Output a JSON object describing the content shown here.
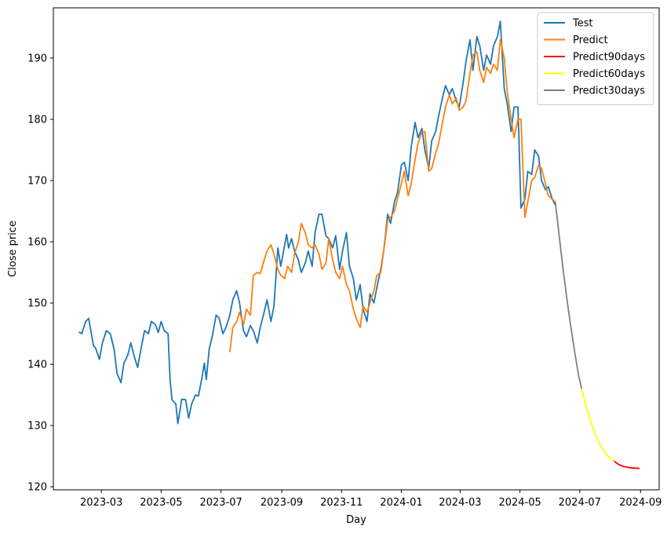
{
  "chart_data": {
    "type": "line",
    "title": "",
    "xlabel": "Day",
    "ylabel": "Close price",
    "ylim": [
      119.5,
      198.2
    ],
    "xlim": [
      "2023-01-11",
      "2024-09-20"
    ],
    "grid": false,
    "legend_position": "top-right",
    "x_ticks": [
      "2023-03",
      "2023-05",
      "2023-07",
      "2023-09",
      "2023-11",
      "2024-01",
      "2024-03",
      "2024-05",
      "2024-07",
      "2024-09"
    ],
    "y_ticks": [
      120,
      130,
      140,
      150,
      160,
      170,
      180,
      190
    ],
    "series": [
      {
        "name": "Test",
        "color": "#1f77b4",
        "points": [
          [
            "2023-02-06",
            145.3
          ],
          [
            "2023-02-09",
            145.0
          ],
          [
            "2023-02-13",
            147.0
          ],
          [
            "2023-02-16",
            147.5
          ],
          [
            "2023-02-21",
            143.0
          ],
          [
            "2023-02-23",
            142.7
          ],
          [
            "2023-02-27",
            140.8
          ],
          [
            "2023-03-02",
            143.5
          ],
          [
            "2023-03-06",
            145.5
          ],
          [
            "2023-03-10",
            145.0
          ],
          [
            "2023-03-14",
            142.5
          ],
          [
            "2023-03-17",
            138.5
          ],
          [
            "2023-03-21",
            137.0
          ],
          [
            "2023-03-24",
            140.2
          ],
          [
            "2023-03-28",
            141.5
          ],
          [
            "2023-03-31",
            143.5
          ],
          [
            "2023-04-04",
            141.0
          ],
          [
            "2023-04-07",
            139.5
          ],
          [
            "2023-04-11",
            143.0
          ],
          [
            "2023-04-14",
            145.5
          ],
          [
            "2023-04-18",
            145.0
          ],
          [
            "2023-04-21",
            147.0
          ],
          [
            "2023-04-25",
            146.5
          ],
          [
            "2023-04-28",
            145.2
          ],
          [
            "2023-05-01",
            147.0
          ],
          [
            "2023-05-04",
            145.5
          ],
          [
            "2023-05-08",
            145.0
          ],
          [
            "2023-05-10",
            137.5
          ],
          [
            "2023-05-12",
            134.2
          ],
          [
            "2023-05-16",
            133.5
          ],
          [
            "2023-05-18",
            130.3
          ],
          [
            "2023-05-22",
            134.3
          ],
          [
            "2023-05-26",
            134.2
          ],
          [
            "2023-05-29",
            131.2
          ],
          [
            "2023-06-01",
            133.5
          ],
          [
            "2023-06-05",
            135.0
          ],
          [
            "2023-06-08",
            134.8
          ],
          [
            "2023-06-12",
            138.2
          ],
          [
            "2023-06-14",
            140.2
          ],
          [
            "2023-06-16",
            137.5
          ],
          [
            "2023-06-19",
            142.5
          ],
          [
            "2023-06-22",
            144.5
          ],
          [
            "2023-06-26",
            148.0
          ],
          [
            "2023-06-29",
            147.6
          ],
          [
            "2023-07-03",
            145.0
          ],
          [
            "2023-07-06",
            146.0
          ],
          [
            "2023-07-10",
            148.0
          ],
          [
            "2023-07-13",
            150.5
          ],
          [
            "2023-07-17",
            152.0
          ],
          [
            "2023-07-20",
            150.0
          ],
          [
            "2023-07-24",
            145.5
          ],
          [
            "2023-07-27",
            144.5
          ],
          [
            "2023-07-31",
            146.3
          ],
          [
            "2023-08-03",
            145.5
          ],
          [
            "2023-08-07",
            143.5
          ],
          [
            "2023-08-10",
            146.0
          ],
          [
            "2023-08-14",
            148.5
          ],
          [
            "2023-08-17",
            150.5
          ],
          [
            "2023-08-21",
            147.0
          ],
          [
            "2023-08-24",
            149.5
          ],
          [
            "2023-08-28",
            159.0
          ],
          [
            "2023-08-31",
            156.0
          ],
          [
            "2023-09-04",
            159.5
          ],
          [
            "2023-09-06",
            161.2
          ],
          [
            "2023-09-08",
            159.0
          ],
          [
            "2023-09-11",
            160.5
          ],
          [
            "2023-09-14",
            158.5
          ],
          [
            "2023-09-18",
            157.0
          ],
          [
            "2023-09-21",
            155.0
          ],
          [
            "2023-09-25",
            156.5
          ],
          [
            "2023-09-28",
            158.5
          ],
          [
            "2023-10-02",
            156.0
          ],
          [
            "2023-10-05",
            161.5
          ],
          [
            "2023-10-09",
            164.5
          ],
          [
            "2023-10-12",
            164.5
          ],
          [
            "2023-10-16",
            161.0
          ],
          [
            "2023-10-19",
            160.5
          ],
          [
            "2023-10-23",
            159.0
          ],
          [
            "2023-10-26",
            161.0
          ],
          [
            "2023-10-30",
            155.5
          ],
          [
            "2023-11-02",
            158.5
          ],
          [
            "2023-11-06",
            161.5
          ],
          [
            "2023-11-09",
            156.0
          ],
          [
            "2023-11-13",
            154.0
          ],
          [
            "2023-11-16",
            150.5
          ],
          [
            "2023-11-20",
            153.0
          ],
          [
            "2023-11-23",
            149.0
          ],
          [
            "2023-11-27",
            147.0
          ],
          [
            "2023-11-30",
            151.5
          ],
          [
            "2023-12-04",
            150.0
          ],
          [
            "2023-12-07",
            152.5
          ],
          [
            "2023-12-11",
            155.5
          ],
          [
            "2023-12-14",
            158.5
          ],
          [
            "2023-12-18",
            164.5
          ],
          [
            "2023-12-21",
            163.0
          ],
          [
            "2023-12-25",
            166.5
          ],
          [
            "2023-12-28",
            168.0
          ],
          [
            "2024-01-01",
            172.5
          ],
          [
            "2024-01-04",
            173.0
          ],
          [
            "2024-01-08",
            170.0
          ],
          [
            "2024-01-11",
            175.5
          ],
          [
            "2024-01-15",
            179.5
          ],
          [
            "2024-01-18",
            177.0
          ],
          [
            "2024-01-22",
            178.5
          ],
          [
            "2024-01-25",
            175.0
          ],
          [
            "2024-01-29",
            172.0
          ],
          [
            "2024-02-01",
            176.5
          ],
          [
            "2024-02-05",
            178.0
          ],
          [
            "2024-02-08",
            180.5
          ],
          [
            "2024-02-12",
            183.5
          ],
          [
            "2024-02-15",
            185.5
          ],
          [
            "2024-02-19",
            184.0
          ],
          [
            "2024-02-22",
            185.0
          ],
          [
            "2024-02-26",
            183.0
          ],
          [
            "2024-02-29",
            182.0
          ],
          [
            "2024-03-04",
            186.0
          ],
          [
            "2024-03-07",
            189.5
          ],
          [
            "2024-03-11",
            193.0
          ],
          [
            "2024-03-14",
            188.0
          ],
          [
            "2024-03-18",
            193.5
          ],
          [
            "2024-03-21",
            192.0
          ],
          [
            "2024-03-25",
            188.0
          ],
          [
            "2024-03-28",
            190.5
          ],
          [
            "2024-04-01",
            189.0
          ],
          [
            "2024-04-04",
            192.0
          ],
          [
            "2024-04-08",
            193.5
          ],
          [
            "2024-04-11",
            196.0
          ],
          [
            "2024-04-15",
            185.0
          ],
          [
            "2024-04-18",
            182.5
          ],
          [
            "2024-04-22",
            178.0
          ],
          [
            "2024-04-25",
            182.0
          ],
          [
            "2024-04-29",
            182.0
          ],
          [
            "2024-05-02",
            165.5
          ],
          [
            "2024-05-06",
            167.0
          ],
          [
            "2024-05-09",
            171.5
          ],
          [
            "2024-05-13",
            171.0
          ],
          [
            "2024-05-16",
            175.0
          ],
          [
            "2024-05-20",
            174.0
          ],
          [
            "2024-05-23",
            170.0
          ],
          [
            "2024-05-27",
            168.5
          ],
          [
            "2024-05-30",
            169.0
          ],
          [
            "2024-06-03",
            167.0
          ],
          [
            "2024-06-06",
            166.0
          ]
        ]
      },
      {
        "name": "Predict",
        "color": "#ff7f0e",
        "points": [
          [
            "2023-07-10",
            142.0
          ],
          [
            "2023-07-13",
            146.0
          ],
          [
            "2023-07-17",
            147.0
          ],
          [
            "2023-07-20",
            148.5
          ],
          [
            "2023-07-24",
            146.5
          ],
          [
            "2023-07-27",
            149.0
          ],
          [
            "2023-07-31",
            148.0
          ],
          [
            "2023-08-03",
            154.5
          ],
          [
            "2023-08-07",
            155.0
          ],
          [
            "2023-08-10",
            154.8
          ],
          [
            "2023-08-14",
            157.0
          ],
          [
            "2023-08-17",
            158.5
          ],
          [
            "2023-08-21",
            159.5
          ],
          [
            "2023-08-24",
            158.0
          ],
          [
            "2023-08-28",
            155.5
          ],
          [
            "2023-08-31",
            154.5
          ],
          [
            "2023-09-04",
            154.0
          ],
          [
            "2023-09-07",
            156.0
          ],
          [
            "2023-09-11",
            155.0
          ],
          [
            "2023-09-14",
            158.0
          ],
          [
            "2023-09-18",
            160.0
          ],
          [
            "2023-09-21",
            163.0
          ],
          [
            "2023-09-25",
            161.5
          ],
          [
            "2023-09-28",
            159.5
          ],
          [
            "2023-10-02",
            159.0
          ],
          [
            "2023-10-05",
            159.5
          ],
          [
            "2023-10-09",
            158.0
          ],
          [
            "2023-10-12",
            155.5
          ],
          [
            "2023-10-16",
            156.5
          ],
          [
            "2023-10-19",
            160.5
          ],
          [
            "2023-10-23",
            157.0
          ],
          [
            "2023-10-26",
            155.0
          ],
          [
            "2023-10-30",
            154.0
          ],
          [
            "2023-11-02",
            156.0
          ],
          [
            "2023-11-06",
            153.0
          ],
          [
            "2023-11-09",
            152.0
          ],
          [
            "2023-11-13",
            149.0
          ],
          [
            "2023-11-16",
            147.5
          ],
          [
            "2023-11-20",
            146.0
          ],
          [
            "2023-11-23",
            149.5
          ],
          [
            "2023-11-27",
            148.5
          ],
          [
            "2023-11-30",
            150.0
          ],
          [
            "2023-12-04",
            152.0
          ],
          [
            "2023-12-07",
            154.5
          ],
          [
            "2023-12-11",
            155.0
          ],
          [
            "2023-12-14",
            158.5
          ],
          [
            "2023-12-18",
            163.5
          ],
          [
            "2023-12-21",
            164.0
          ],
          [
            "2023-12-25",
            165.0
          ],
          [
            "2023-12-28",
            167.0
          ],
          [
            "2024-01-01",
            169.5
          ],
          [
            "2024-01-04",
            171.5
          ],
          [
            "2024-01-08",
            167.5
          ],
          [
            "2024-01-11",
            169.5
          ],
          [
            "2024-01-15",
            173.5
          ],
          [
            "2024-01-18",
            176.0
          ],
          [
            "2024-01-22",
            178.0
          ],
          [
            "2024-01-25",
            178.0
          ],
          [
            "2024-01-29",
            171.5
          ],
          [
            "2024-02-01",
            172.0
          ],
          [
            "2024-02-05",
            174.5
          ],
          [
            "2024-02-08",
            176.0
          ],
          [
            "2024-02-12",
            179.5
          ],
          [
            "2024-02-15",
            182.0
          ],
          [
            "2024-02-19",
            184.0
          ],
          [
            "2024-02-22",
            182.5
          ],
          [
            "2024-02-26",
            183.5
          ],
          [
            "2024-02-29",
            181.5
          ],
          [
            "2024-03-04",
            182.0
          ],
          [
            "2024-03-07",
            183.0
          ],
          [
            "2024-03-11",
            187.5
          ],
          [
            "2024-03-14",
            190.5
          ],
          [
            "2024-03-18",
            191.0
          ],
          [
            "2024-03-21",
            188.0
          ],
          [
            "2024-03-25",
            186.0
          ],
          [
            "2024-03-28",
            188.5
          ],
          [
            "2024-04-01",
            187.5
          ],
          [
            "2024-04-04",
            189.0
          ],
          [
            "2024-04-08",
            188.0
          ],
          [
            "2024-04-11",
            193.0
          ],
          [
            "2024-04-15",
            190.0
          ],
          [
            "2024-04-18",
            184.5
          ],
          [
            "2024-04-22",
            180.0
          ],
          [
            "2024-04-25",
            177.0
          ],
          [
            "2024-04-29",
            180.0
          ],
          [
            "2024-05-02",
            180.0
          ],
          [
            "2024-05-06",
            164.0
          ],
          [
            "2024-05-09",
            166.5
          ],
          [
            "2024-05-13",
            170.0
          ],
          [
            "2024-05-16",
            170.5
          ],
          [
            "2024-05-20",
            172.5
          ],
          [
            "2024-05-23",
            172.0
          ],
          [
            "2024-05-27",
            169.5
          ],
          [
            "2024-05-30",
            167.5
          ],
          [
            "2024-06-03",
            167.0
          ],
          [
            "2024-06-06",
            166.5
          ]
        ]
      },
      {
        "name": "Predict90days",
        "color": "#ff0000",
        "points": [
          [
            "2024-08-05",
            124.2
          ],
          [
            "2024-08-10",
            123.6
          ],
          [
            "2024-08-15",
            123.3
          ],
          [
            "2024-08-20",
            123.15
          ],
          [
            "2024-08-25",
            123.05
          ],
          [
            "2024-08-31",
            123.0
          ]
        ]
      },
      {
        "name": "Predict60days",
        "color": "#ffff00",
        "points": [
          [
            "2024-07-03",
            136.0
          ],
          [
            "2024-07-08",
            132.8
          ],
          [
            "2024-07-13",
            130.2
          ],
          [
            "2024-07-18",
            128.1
          ],
          [
            "2024-07-23",
            126.5
          ],
          [
            "2024-07-28",
            125.3
          ],
          [
            "2024-08-02",
            124.5
          ],
          [
            "2024-08-05",
            124.2
          ]
        ]
      },
      {
        "name": "Predict30days",
        "color": "#808080",
        "points": [
          [
            "2024-06-06",
            166.5
          ],
          [
            "2024-06-10",
            161.0
          ],
          [
            "2024-06-14",
            155.5
          ],
          [
            "2024-06-18",
            150.5
          ],
          [
            "2024-06-22",
            146.0
          ],
          [
            "2024-06-26",
            141.8
          ],
          [
            "2024-06-30",
            138.0
          ],
          [
            "2024-07-03",
            136.0
          ]
        ]
      }
    ]
  }
}
